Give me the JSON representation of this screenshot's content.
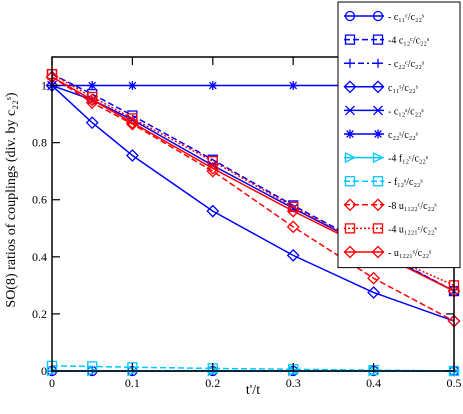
{
  "chart_data": {
    "type": "line",
    "xlabel": "t'/t",
    "ylabel": "SO(8) ratios of couplings (div. by c₂₂ˢ)",
    "xlim": [
      0,
      0.5
    ],
    "ylim": [
      0,
      1.1
    ],
    "xticks": [
      "0",
      "0.1",
      "0.2",
      "0.3",
      "0.4",
      "0.5"
    ],
    "yticks": [
      "0",
      "0.2",
      "0.4",
      "0.6",
      "0.8",
      "1"
    ],
    "legend_position": "top-right",
    "grid": false,
    "series": [
      {
        "name": "- c₁₁ᶜ/c₂₂ˢ",
        "color": "#0000ff",
        "dash": "solid",
        "marker": "circle",
        "x": [
          0,
          0.05,
          0.1,
          0.2,
          0.3,
          0.4,
          0.5
        ],
        "y": [
          0,
          0,
          0,
          0,
          0,
          0,
          0
        ]
      },
      {
        "name": "-4 c₁₂ᶜ/c₂₂ˢ",
        "color": "#0000ff",
        "dash": "dash",
        "marker": "square",
        "x": [
          0,
          0.05,
          0.1,
          0.2,
          0.3,
          0.4,
          0.5
        ],
        "y": [
          1.04,
          0.97,
          0.895,
          0.74,
          0.58,
          0.43,
          0.28
        ]
      },
      {
        "name": "- c₂₂ᶜ/c₂₂ˢ",
        "color": "#0000ff",
        "dash": "dashdot",
        "marker": "plus",
        "x": [
          0,
          0.05,
          0.1,
          0.2,
          0.3,
          0.4,
          0.5
        ],
        "y": [
          0,
          0,
          0,
          0,
          0,
          0,
          0
        ]
      },
      {
        "name": "c₁₁ˢ/c₂₂ˢ",
        "color": "#0000ff",
        "dash": "solid",
        "marker": "diamond",
        "x": [
          0,
          0.05,
          0.1,
          0.2,
          0.3,
          0.4,
          0.5
        ],
        "y": [
          1.0,
          0.87,
          0.755,
          0.56,
          0.405,
          0.275,
          0.175
        ]
      },
      {
        "name": "- c₁₂ˢ/c₂₂ˢ",
        "color": "#0000ff",
        "dash": "solid",
        "marker": "x",
        "x": [
          0,
          0.05,
          0.1,
          0.2,
          0.3,
          0.4,
          0.5
        ],
        "y": [
          1.0,
          0.95,
          0.88,
          0.72,
          0.57,
          0.425,
          0.28
        ]
      },
      {
        "name": "c₂₂ˢ/c₂₂ˢ",
        "color": "#0000ff",
        "dash": "solid",
        "marker": "asterisk",
        "x": [
          0,
          0.05,
          0.1,
          0.2,
          0.3,
          0.4,
          0.5
        ],
        "y": [
          1,
          1,
          1,
          1,
          1,
          1,
          1
        ]
      },
      {
        "name": "-4 f₁₂ᶜ/c₂₂ˢ",
        "color": "#00c8ff",
        "dash": "solid",
        "marker": "triangle",
        "x": [
          0,
          0.05,
          0.1,
          0.2,
          0.3,
          0.4,
          0.5
        ],
        "y": [
          0,
          0,
          0,
          0,
          0,
          0,
          0
        ]
      },
      {
        "name": "- f₁₂ˢ/c₂₂ˢ",
        "color": "#00c8ff",
        "dash": "dash",
        "marker": "square",
        "x": [
          0,
          0.05,
          0.1,
          0.2,
          0.3,
          0.4,
          0.5
        ],
        "y": [
          0.018,
          0.016,
          0.013,
          0.009,
          0.006,
          0.003,
          0.0
        ]
      },
      {
        "name": "-8 u₁₁₂₂ᶜ/c₂₂ˢ",
        "color": "#ff0000",
        "dash": "dash",
        "marker": "diamond",
        "x": [
          0,
          0.05,
          0.1,
          0.2,
          0.3,
          0.4,
          0.5
        ],
        "y": [
          1.03,
          0.94,
          0.865,
          0.7,
          0.505,
          0.325,
          0.175
        ]
      },
      {
        "name": "-4 u₁₂₂₁ᶜ/c₂₂ˢ",
        "color": "#ff0000",
        "dash": "dotted",
        "marker": "square",
        "x": [
          0,
          0.05,
          0.1,
          0.2,
          0.3,
          0.4,
          0.5
        ],
        "y": [
          1.04,
          0.96,
          0.885,
          0.735,
          0.575,
          0.425,
          0.3
        ]
      },
      {
        "name": "- u₁₂₂₁ˢ/c₂₂ˢ",
        "color": "#ff0000",
        "dash": "solid",
        "marker": "diamond",
        "x": [
          0,
          0.05,
          0.1,
          0.2,
          0.3,
          0.4,
          0.5
        ],
        "y": [
          1.03,
          0.95,
          0.87,
          0.71,
          0.56,
          0.42,
          0.28
        ]
      }
    ]
  }
}
